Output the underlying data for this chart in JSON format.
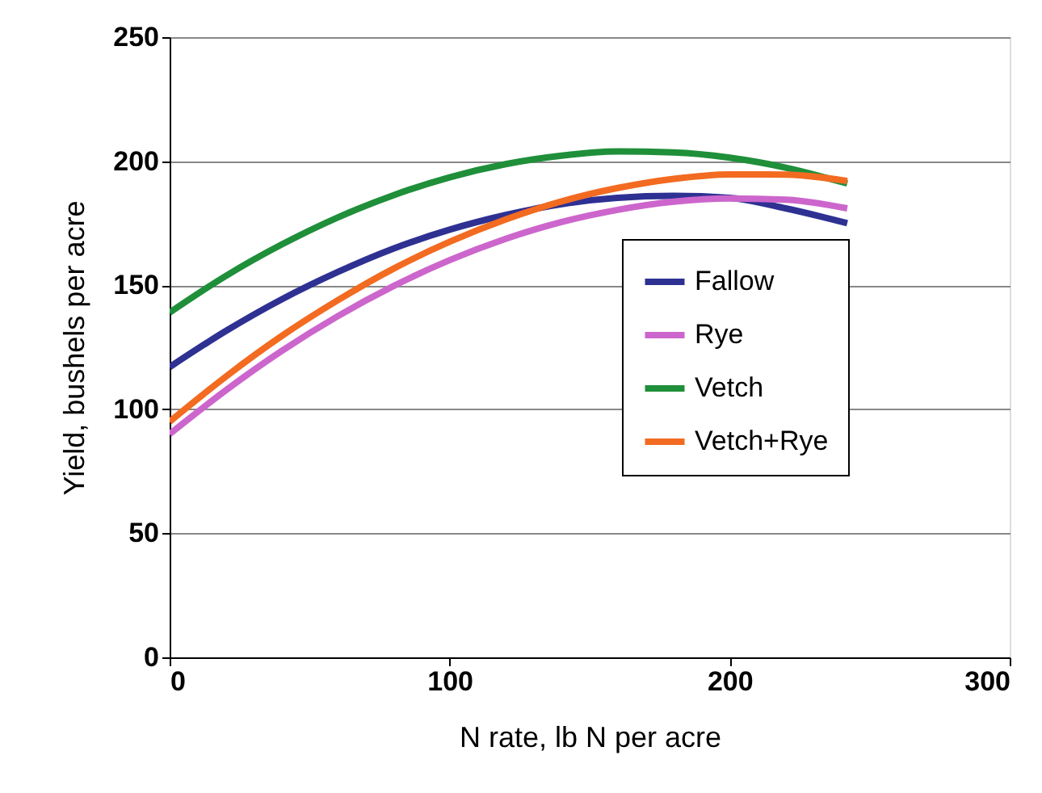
{
  "chart_data": {
    "type": "line",
    "xlabel": "N rate, lb N per acre",
    "ylabel": "Yield, bushels per acre",
    "x": [
      0,
      20,
      40,
      60,
      80,
      100,
      120,
      140,
      160,
      180,
      200,
      220,
      242
    ],
    "series": [
      {
        "name": "Fallow",
        "color": "#2e3192",
        "values": [
          117,
          131.5,
          144.3,
          155.3,
          164.8,
          172.4,
          178.3,
          182.7,
          185.2,
          186,
          185.2,
          181,
          175
        ]
      },
      {
        "name": "Rye",
        "color": "#cc66cc",
        "values": [
          90,
          107.6,
          123.5,
          137.5,
          149.7,
          160.1,
          168.7,
          175.5,
          180.4,
          183.7,
          185,
          184.5,
          181
        ]
      },
      {
        "name": "Vetch",
        "color": "#1f8f3a",
        "values": [
          139,
          153.7,
          166.4,
          177.3,
          186.3,
          193.5,
          198.8,
          202.2,
          203.9,
          203.5,
          201.4,
          197.4,
          191
        ]
      },
      {
        "name": "Vetch+Rye",
        "color": "#f26b21",
        "values": [
          95,
          113.1,
          129.5,
          143.9,
          156.7,
          167.5,
          176.5,
          183.8,
          189.2,
          192.9,
          194.7,
          194.6,
          192
        ]
      }
    ],
    "xlim": [
      0,
      300
    ],
    "xticks": [
      0,
      100,
      200,
      300
    ],
    "ylim": [
      0,
      250
    ],
    "yticks": [
      0,
      50,
      100,
      150,
      200,
      250
    ],
    "grid": "y",
    "legend": "right",
    "marker": "none",
    "line_style": "solid"
  }
}
